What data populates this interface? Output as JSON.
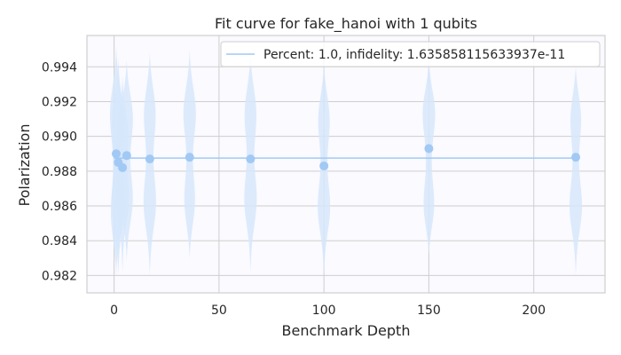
{
  "chart_data": {
    "type": "scatter",
    "title": "Fit curve for fake_hanoi with 1 qubits",
    "xlabel": "Benchmark Depth",
    "ylabel": "Polarization",
    "xlim": [
      -12.95,
      233.95
    ],
    "ylim": [
      0.981,
      0.9958
    ],
    "xticks": [
      0,
      50,
      100,
      150,
      200
    ],
    "xtick_labels": [
      "0",
      "50",
      "100",
      "150",
      "200"
    ],
    "yticks": [
      0.982,
      0.984,
      0.986,
      0.988,
      0.99,
      0.992,
      0.994
    ],
    "ytick_labels": [
      "0.982",
      "0.984",
      "0.986",
      "0.988",
      "0.990",
      "0.992",
      "0.994"
    ],
    "grid": true,
    "legend_position": "top-right",
    "colors": {
      "fit_line": "#a1c9f4",
      "points": "#a1c9f4",
      "violins": "#d6e6fb",
      "plot_bg": "#fafaff",
      "grid": "#cfcfcf",
      "axes": "#cfcfcf"
    },
    "series": [
      {
        "name": "Percent: 1.0, infidelity: 1.635858115633937e-11",
        "kind": "line",
        "x": [
          0,
          220
        ],
        "values": [
          0.98875,
          0.98875
        ]
      },
      {
        "kind": "scatter",
        "x": [
          1,
          2,
          4,
          6,
          17,
          36,
          65,
          100,
          150,
          220
        ],
        "values": [
          0.989,
          0.9885,
          0.9882,
          0.9889,
          0.9887,
          0.9888,
          0.9887,
          0.9883,
          0.9893,
          0.9888
        ]
      }
    ],
    "distributions": [
      {
        "x": 1,
        "min": 0.982,
        "max": 0.9952,
        "max_density": 0.9918,
        "second_density": 0.985
      },
      {
        "x": 2,
        "min": 0.982,
        "max": 0.9945,
        "max_density": 0.9912,
        "second_density": 0.9858
      },
      {
        "x": 4,
        "min": 0.9822,
        "max": 0.9935,
        "max_density": 0.9905,
        "second_density": 0.9862
      },
      {
        "x": 6,
        "min": 0.9828,
        "max": 0.9944,
        "max_density": 0.9915,
        "second_density": 0.986
      },
      {
        "x": 17,
        "min": 0.982,
        "max": 0.9948,
        "max_density": 0.9918,
        "second_density": 0.9858
      },
      {
        "x": 36,
        "min": 0.983,
        "max": 0.995,
        "max_density": 0.9918,
        "second_density": 0.9858
      },
      {
        "x": 65,
        "min": 0.9822,
        "max": 0.9948,
        "max_density": 0.9918,
        "second_density": 0.986
      },
      {
        "x": 100,
        "min": 0.982,
        "max": 0.9942,
        "max_density": 0.9915,
        "second_density": 0.9855
      },
      {
        "x": 150,
        "min": 0.9832,
        "max": 0.9945,
        "max_density": 0.9918,
        "second_density": 0.9855
      },
      {
        "x": 220,
        "min": 0.982,
        "max": 0.994,
        "max_density": 0.9916,
        "second_density": 0.9856
      }
    ]
  }
}
